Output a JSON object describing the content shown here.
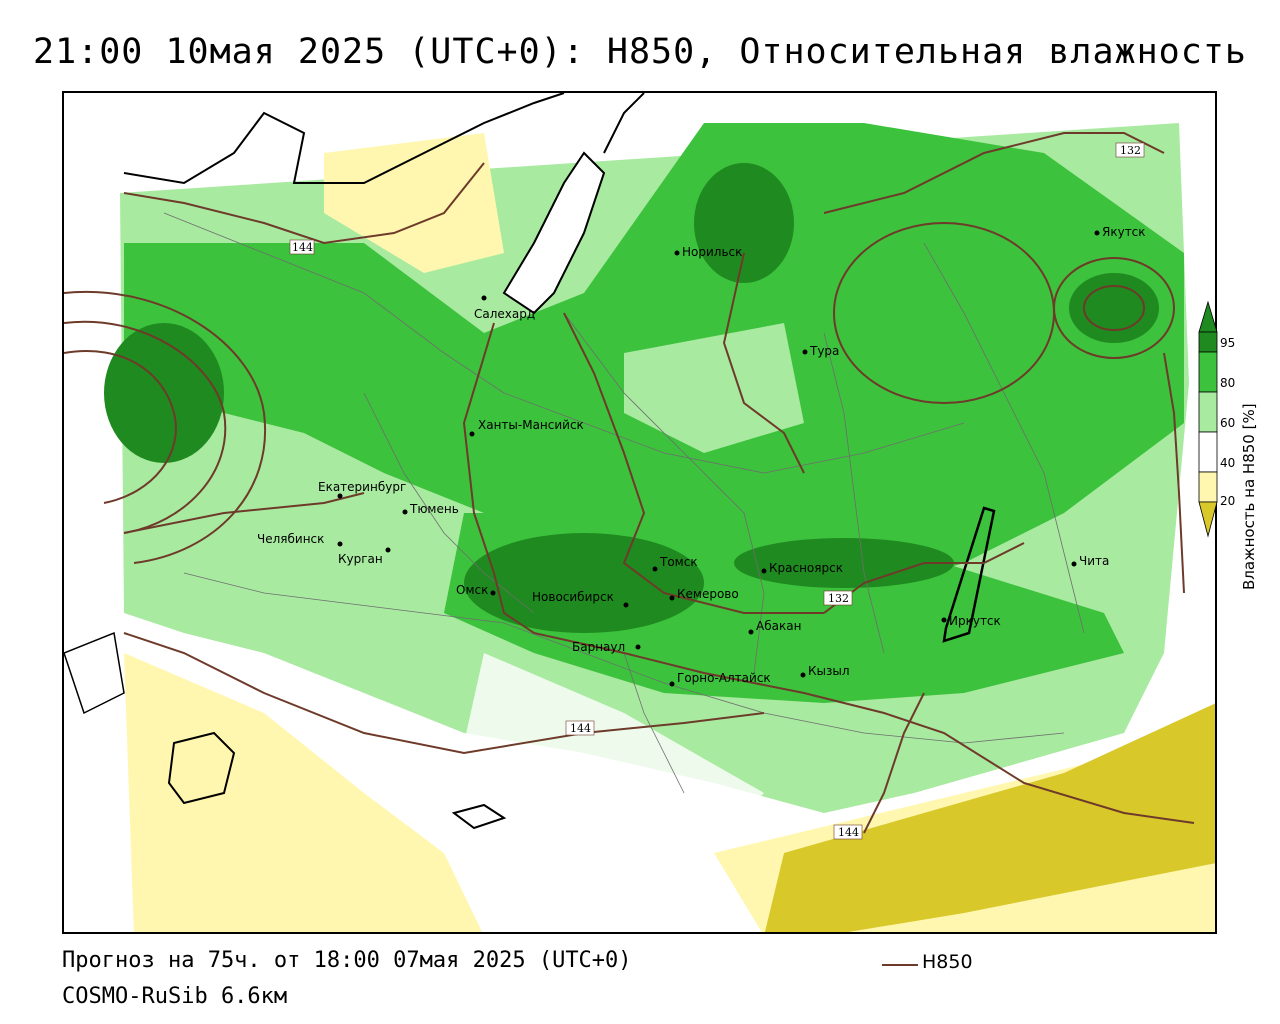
{
  "title": "21:00 10мая 2025 (UTC+0): H850, Относительная влажность",
  "footer": {
    "forecast": "Прогноз на 75ч. от 18:00 07мая 2025 (UTC+0)",
    "model": "COSMO-RuSib 6.6км"
  },
  "legend": {
    "line_label": "H850",
    "line_color": "#6e3a2a"
  },
  "colorbar": {
    "title": "Влажность на H850 [%]",
    "ticks": [
      "95",
      "80",
      "60",
      "40",
      "20"
    ],
    "colors": [
      "#1f8a1f",
      "#3cc23c",
      "#a8eaa0",
      "#ffffff",
      "#fff7b0",
      "#d8c82a"
    ]
  },
  "cities": [
    {
      "name": "Норильск"
    },
    {
      "name": "Якутск"
    },
    {
      "name": "Салехард"
    },
    {
      "name": "Тура"
    },
    {
      "name": "Ханты-Мансийск"
    },
    {
      "name": "Екатеринбург"
    },
    {
      "name": "Тюмень"
    },
    {
      "name": "Челябинск"
    },
    {
      "name": "Курган"
    },
    {
      "name": "Омск"
    },
    {
      "name": "Новосибирск"
    },
    {
      "name": "Томск"
    },
    {
      "name": "Кемерово"
    },
    {
      "name": "Красноярск"
    },
    {
      "name": "Абакан"
    },
    {
      "name": "Барнаул"
    },
    {
      "name": "Горно-Алтайск"
    },
    {
      "name": "Кызыл"
    },
    {
      "name": "Иркутск"
    },
    {
      "name": "Чита"
    }
  ],
  "contour_labels": [
    "144",
    "132",
    "132",
    "144",
    "144"
  ]
}
